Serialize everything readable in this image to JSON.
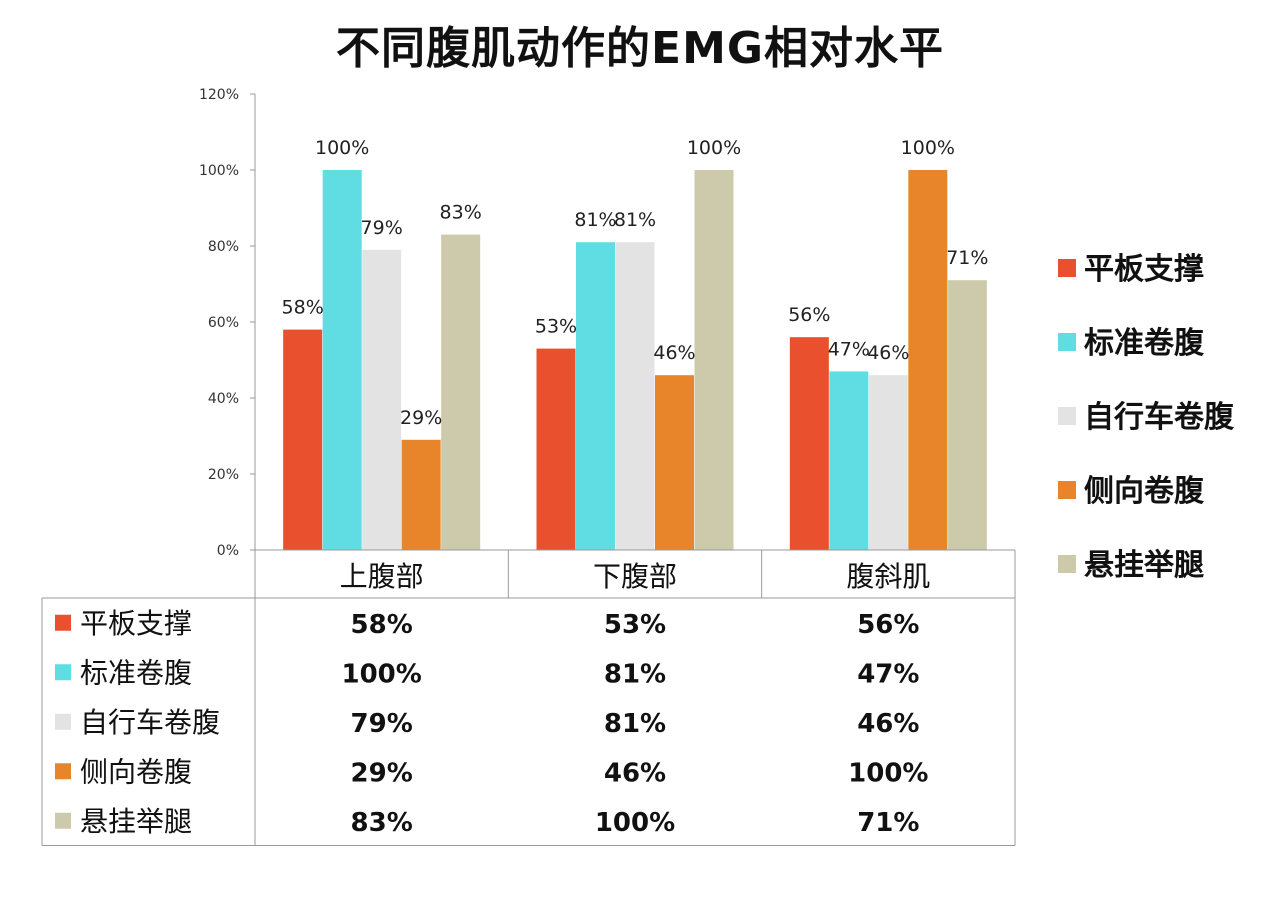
{
  "chart_data": {
    "type": "bar",
    "title": "不同腹肌动作的EMG相对水平",
    "categories": [
      "上腹部",
      "下腹部",
      "腹斜肌"
    ],
    "ylim": [
      0,
      120
    ],
    "yticks": [
      "0%",
      "20%",
      "40%",
      "60%",
      "80%",
      "100%",
      "120%"
    ],
    "grid": false,
    "legend_position": "right",
    "series": [
      {
        "name": "平板支撑",
        "values": [
          58,
          53,
          56
        ],
        "labels": [
          "58%",
          "53%",
          "56%"
        ],
        "color": "#e8502e"
      },
      {
        "name": "标准卷腹",
        "values": [
          100,
          81,
          47
        ],
        "labels": [
          "100%",
          "81%",
          "47%"
        ],
        "color": "#5fdde3"
      },
      {
        "name": "自行车卷腹",
        "values": [
          79,
          81,
          46
        ],
        "labels": [
          "79%",
          "81%",
          "46%"
        ],
        "color": "#e3e3e3"
      },
      {
        "name": "侧向卷腹",
        "values": [
          29,
          46,
          100
        ],
        "labels": [
          "29%",
          "46%",
          "100%"
        ],
        "color": "#e8852a"
      },
      {
        "name": "悬挂举腿",
        "values": [
          83,
          100,
          71
        ],
        "labels": [
          "83%",
          "100%",
          "71%"
        ],
        "color": "#cdc9ab"
      }
    ]
  }
}
